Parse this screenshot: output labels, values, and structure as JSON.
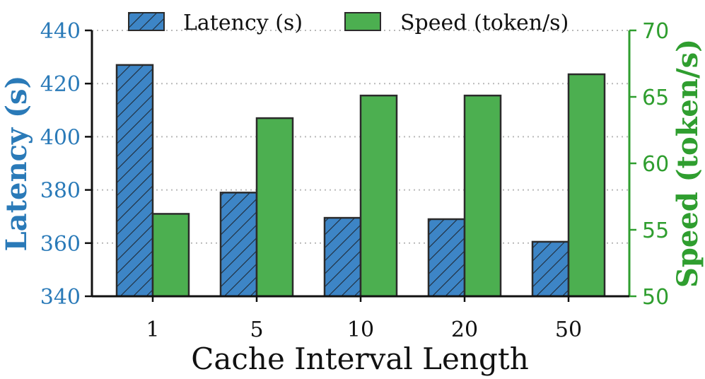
{
  "chart_data": {
    "type": "bar",
    "categories": [
      "1",
      "5",
      "10",
      "20",
      "50"
    ],
    "xlabel": "Cache Interval Length",
    "series": [
      {
        "name": "Latency (s)",
        "axis": "left",
        "color": "#3d85c6",
        "hatch": true,
        "values": [
          427,
          379,
          369.5,
          369,
          360.5
        ]
      },
      {
        "name": "Speed (token/s)",
        "axis": "right",
        "color": "#4caf50",
        "hatch": false,
        "values": [
          56.2,
          63.4,
          65.1,
          65.1,
          66.7
        ]
      }
    ],
    "left_axis": {
      "label": "Latency (s)",
      "color": "#2a7ab8",
      "ylim": [
        340,
        440
      ],
      "ticks": [
        "340",
        "360",
        "380",
        "400",
        "420",
        "440"
      ]
    },
    "right_axis": {
      "label": "Speed (token/s)",
      "color": "#2f9e2f",
      "ylim": [
        50,
        70
      ],
      "ticks": [
        "50",
        "55",
        "60",
        "65",
        "70"
      ]
    },
    "grid": "horizontal-dotted",
    "legend_position": "top-center"
  }
}
